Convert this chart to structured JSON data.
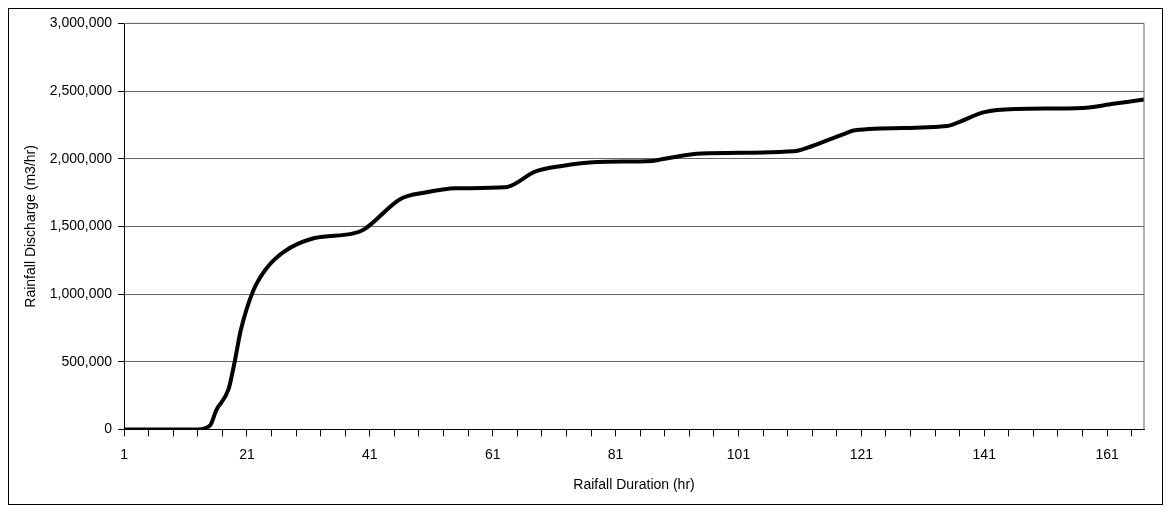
{
  "chart_data": {
    "type": "line",
    "xlabel": "Raifall Duration (hr)",
    "ylabel": "Rainfall Discharge (m3/hr)",
    "x": [
      1,
      13,
      15,
      16,
      18,
      19,
      20,
      22,
      24,
      27,
      32,
      38,
      40,
      46,
      50,
      55,
      63,
      68,
      72,
      78,
      87,
      89,
      95,
      110,
      113,
      118,
      120,
      135,
      137,
      141,
      146,
      157,
      162,
      167
    ],
    "series": [
      {
        "color": "#000000",
        "values": [
          0,
          0,
          30000,
          141000,
          297000,
          500000,
          734000,
          1023000,
          1180000,
          1312000,
          1414000,
          1445000,
          1476000,
          1703000,
          1750000,
          1781000,
          1789000,
          1906000,
          1945000,
          1976000,
          1984000,
          2000000,
          2039000,
          2055000,
          2094000,
          2180000,
          2211000,
          2242000,
          2273000,
          2344000,
          2367000,
          2375000,
          2406000,
          2437000
        ]
      }
    ],
    "xlim": [
      1,
      167
    ],
    "xticks": [
      1,
      {
        "value": 5,
        "label": null
      },
      {
        "value": 9,
        "label": null
      },
      {
        "value": 13,
        "label": null
      },
      {
        "value": 17,
        "label": null
      },
      21,
      {
        "value": 25,
        "label": null
      },
      {
        "value": 29,
        "label": null
      },
      {
        "value": 33,
        "label": null
      },
      {
        "value": 37,
        "label": null
      },
      41,
      {
        "value": 45,
        "label": null
      },
      {
        "value": 49,
        "label": null
      },
      {
        "value": 53,
        "label": null
      },
      {
        "value": 57,
        "label": null
      },
      61,
      {
        "value": 65,
        "label": null
      },
      {
        "value": 69,
        "label": null
      },
      {
        "value": 73,
        "label": null
      },
      {
        "value": 77,
        "label": null
      },
      81,
      {
        "value": 85,
        "label": null
      },
      {
        "value": 89,
        "label": null
      },
      {
        "value": 93,
        "label": null
      },
      {
        "value": 97,
        "label": null
      },
      101,
      {
        "value": 105,
        "label": null
      },
      {
        "value": 109,
        "label": null
      },
      {
        "value": 113,
        "label": null
      },
      {
        "value": 117,
        "label": null
      },
      121,
      {
        "value": 125,
        "label": null
      },
      {
        "value": 129,
        "label": null
      },
      {
        "value": 133,
        "label": null
      },
      {
        "value": 137,
        "label": null
      },
      141,
      {
        "value": 145,
        "label": null
      },
      {
        "value": 149,
        "label": null
      },
      {
        "value": 153,
        "label": null
      },
      {
        "value": 157,
        "label": null
      },
      161,
      {
        "value": 165,
        "label": null
      }
    ],
    "ylim": [
      0,
      3000000
    ],
    "yticks": [
      {
        "value": 0,
        "label": "0"
      },
      {
        "value": 500000,
        "label": "500,000"
      },
      {
        "value": 1000000,
        "label": "1,000,000"
      },
      {
        "value": 1500000,
        "label": "1,500,000"
      },
      {
        "value": 2000000,
        "label": "2,000,000"
      },
      {
        "value": 2500000,
        "label": "2,500,000"
      },
      {
        "value": 3000000,
        "label": "3,000,000"
      }
    ],
    "grid": "y",
    "legend": false,
    "marker": "none",
    "line_style": "solid"
  }
}
